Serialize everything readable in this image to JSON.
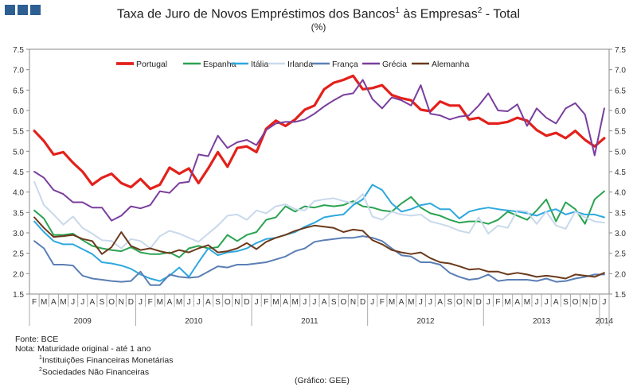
{
  "header": {
    "logo_name": "gee-logo",
    "title_main": "Taxa de Juro de Novos Empréstimos  dos Bancos",
    "title_sup1": "1",
    "title_mid": " às Empresas",
    "title_sup2": "2",
    "title_end": " - Total",
    "subtitle": "(%)"
  },
  "notes": {
    "source": "Fonte:  BCE",
    "note": "Nota:  Maturidade original - até 1 ano",
    "fn1_mark": "1",
    "fn1_text": "Instituições Financeiras Monetárias",
    "fn2_mark": "2",
    "fn2_text": "Sociedades Não Financeiras",
    "credit": "(Gráfico:  GEE)"
  },
  "chart_data": {
    "type": "line",
    "title": "Taxa de Juro de Novos Empréstimos dos Bancos às Empresas - Total",
    "ylabel": "(%)",
    "ylim": [
      1.5,
      7.5
    ],
    "yticks": [
      "1.5",
      "2.0",
      "2.5",
      "3.0",
      "3.5",
      "4.0",
      "4.5",
      "5.0",
      "5.5",
      "6.0",
      "6.5",
      "7.0",
      "7.5"
    ],
    "grid": false,
    "legend_position": "top",
    "month_labels": [
      "F",
      "M",
      "A",
      "M",
      "J",
      "J",
      "A",
      "S",
      "O",
      "N",
      "D",
      "J",
      "F",
      "M",
      "A",
      "M",
      "J",
      "J",
      "A",
      "S",
      "O",
      "N",
      "D",
      "J",
      "F",
      "M",
      "A",
      "M",
      "J",
      "J",
      "A",
      "S",
      "O",
      "N",
      "D",
      "J",
      "F",
      "M",
      "A",
      "M",
      "J",
      "J",
      "A",
      "S",
      "O",
      "N",
      "D",
      "J",
      "F",
      "M",
      "A",
      "M",
      "J",
      "J",
      "A",
      "S",
      "O",
      "N",
      "D",
      "J"
    ],
    "year_labels": [
      "2009",
      "2010",
      "2011",
      "2012",
      "2013",
      "2014"
    ],
    "series": [
      {
        "name": "Portugal",
        "color": "#e3201b",
        "width": 3.2,
        "values": [
          5.5,
          5.25,
          4.92,
          4.98,
          4.72,
          4.5,
          4.18,
          4.35,
          4.45,
          4.22,
          4.12,
          4.32,
          4.08,
          4.18,
          4.6,
          4.45,
          4.58,
          4.22,
          4.58,
          4.98,
          4.62,
          5.08,
          5.12,
          4.98,
          5.55,
          5.75,
          5.62,
          5.78,
          6.02,
          6.12,
          6.52,
          6.68,
          6.75,
          6.85,
          6.52,
          6.55,
          6.62,
          6.38,
          6.3,
          6.25,
          6.02,
          5.98,
          6.22,
          6.12,
          6.12,
          5.78,
          5.82,
          5.68,
          5.68,
          5.72,
          5.82,
          5.75,
          5.52,
          5.38,
          5.45,
          5.32,
          5.5,
          5.28,
          5.12,
          5.32
        ]
      },
      {
        "name": "Espanha",
        "color": "#2aa352",
        "width": 2.0,
        "values": [
          3.55,
          3.35,
          2.95,
          2.95,
          2.98,
          2.82,
          2.68,
          2.62,
          2.58,
          2.55,
          2.65,
          2.52,
          2.48,
          2.48,
          2.52,
          2.4,
          2.62,
          2.68,
          2.62,
          2.65,
          2.95,
          2.8,
          2.95,
          3.02,
          3.32,
          3.38,
          3.65,
          3.52,
          3.65,
          3.62,
          3.68,
          3.65,
          3.68,
          3.78,
          3.65,
          3.62,
          3.55,
          3.52,
          3.72,
          3.88,
          3.62,
          3.48,
          3.42,
          3.32,
          3.25,
          3.28,
          3.28,
          3.22,
          3.32,
          3.52,
          3.42,
          3.32,
          3.55,
          3.82,
          3.28,
          3.75,
          3.58,
          3.22,
          3.82,
          4.02
        ]
      },
      {
        "name": "Itália",
        "color": "#2ea8de",
        "width": 2.0,
        "values": [
          3.28,
          3.02,
          2.8,
          2.72,
          2.72,
          2.6,
          2.48,
          2.28,
          2.25,
          2.2,
          2.12,
          1.98,
          1.88,
          1.82,
          1.95,
          2.15,
          1.92,
          2.28,
          2.62,
          2.45,
          2.52,
          2.55,
          2.62,
          2.75,
          2.85,
          2.88,
          2.95,
          3.02,
          3.15,
          3.25,
          3.38,
          3.42,
          3.45,
          3.68,
          3.82,
          4.18,
          4.05,
          3.72,
          3.52,
          3.58,
          3.68,
          3.72,
          3.58,
          3.58,
          3.35,
          3.52,
          3.58,
          3.62,
          3.58,
          3.55,
          3.52,
          3.48,
          3.42,
          3.52,
          3.58,
          3.45,
          3.52,
          3.45,
          3.45,
          3.38
        ]
      },
      {
        "name": "Irlanda",
        "color": "#c9d9ec",
        "width": 2.0,
        "values": [
          4.25,
          3.68,
          3.45,
          3.2,
          3.4,
          3.12,
          2.98,
          2.82,
          2.8,
          2.62,
          2.85,
          2.8,
          2.62,
          2.92,
          3.05,
          2.98,
          2.88,
          2.78,
          2.98,
          3.18,
          3.42,
          3.45,
          3.32,
          3.55,
          3.48,
          3.65,
          3.7,
          3.58,
          3.55,
          3.78,
          3.82,
          3.85,
          3.78,
          3.72,
          3.95,
          3.4,
          3.32,
          3.52,
          3.45,
          3.42,
          3.45,
          3.28,
          3.22,
          3.15,
          3.05,
          3.0,
          3.38,
          2.98,
          3.18,
          3.12,
          3.55,
          3.52,
          3.22,
          3.52,
          3.18,
          3.1,
          3.52,
          3.38,
          3.28,
          3.25
        ]
      },
      {
        "name": "França",
        "color": "#5b7fb5",
        "width": 2.0,
        "values": [
          2.8,
          2.62,
          2.22,
          2.22,
          2.2,
          1.95,
          1.88,
          1.85,
          1.82,
          1.8,
          1.82,
          2.05,
          1.72,
          1.72,
          1.98,
          1.92,
          1.9,
          1.92,
          2.05,
          2.18,
          2.15,
          2.22,
          2.22,
          2.25,
          2.28,
          2.35,
          2.42,
          2.55,
          2.62,
          2.78,
          2.82,
          2.85,
          2.88,
          2.88,
          2.92,
          2.88,
          2.8,
          2.62,
          2.45,
          2.42,
          2.28,
          2.28,
          2.22,
          2.02,
          1.92,
          1.85,
          1.88,
          1.98,
          1.82,
          1.85,
          1.85,
          1.85,
          1.82,
          1.88,
          1.8,
          1.82,
          1.88,
          1.92,
          1.98,
          1.98
        ]
      },
      {
        "name": "Grécia",
        "color": "#7a3e9d",
        "width": 2.0,
        "values": [
          4.5,
          4.35,
          4.05,
          3.95,
          3.75,
          3.75,
          3.62,
          3.62,
          3.3,
          3.42,
          3.65,
          3.6,
          3.68,
          4.02,
          3.98,
          4.22,
          4.25,
          4.92,
          4.88,
          5.38,
          5.08,
          5.22,
          5.28,
          5.15,
          5.52,
          5.68,
          5.72,
          5.72,
          5.78,
          5.92,
          6.1,
          6.25,
          6.38,
          6.42,
          6.75,
          6.28,
          6.05,
          6.32,
          6.25,
          6.12,
          6.62,
          5.92,
          5.88,
          5.78,
          5.85,
          5.88,
          6.12,
          6.42,
          6.0,
          5.98,
          6.15,
          5.62,
          6.05,
          5.82,
          5.68,
          6.05,
          6.18,
          5.9,
          4.9,
          6.05
        ]
      },
      {
        "name": "Alemanha",
        "color": "#6b3a1c",
        "width": 2.0,
        "values": [
          3.38,
          3.12,
          2.9,
          2.92,
          2.95,
          2.85,
          2.8,
          2.48,
          2.65,
          3.02,
          2.68,
          2.58,
          2.62,
          2.55,
          2.5,
          2.58,
          2.52,
          2.62,
          2.7,
          2.52,
          2.55,
          2.62,
          2.75,
          2.6,
          2.78,
          2.88,
          2.95,
          3.05,
          3.12,
          3.18,
          3.15,
          3.12,
          3.02,
          3.08,
          3.05,
          2.82,
          2.72,
          2.58,
          2.52,
          2.48,
          2.52,
          2.38,
          2.28,
          2.25,
          2.18,
          2.1,
          2.12,
          2.05,
          2.05,
          1.98,
          2.02,
          1.98,
          1.92,
          1.95,
          1.92,
          1.88,
          1.98,
          1.95,
          1.92,
          2.02
        ]
      }
    ]
  }
}
